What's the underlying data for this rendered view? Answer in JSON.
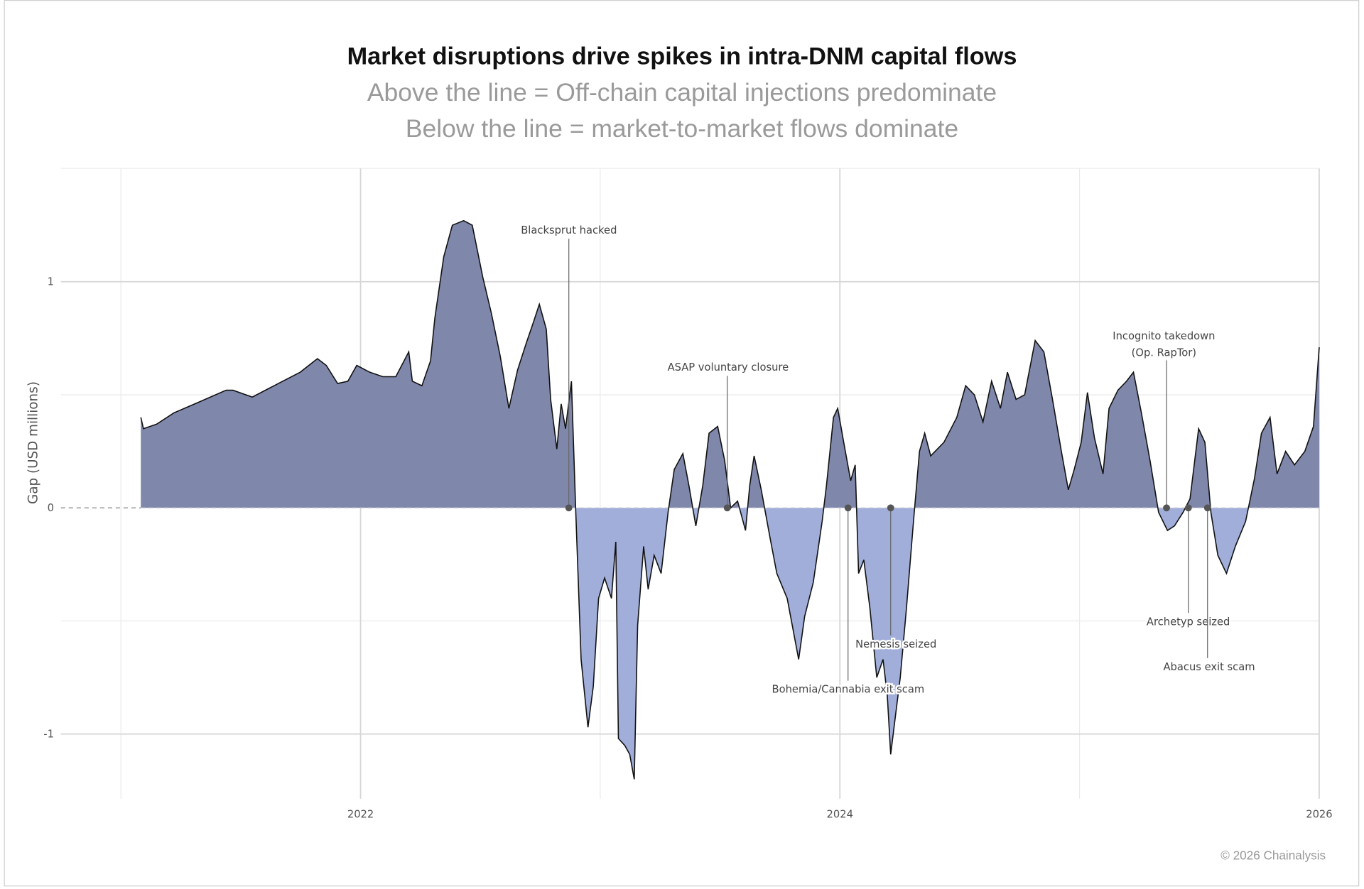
{
  "chart_data": {
    "type": "area",
    "title": "Market disruptions drive spikes in intra-DNM capital flows",
    "subtitle_lines": [
      "Above the line = Off-chain capital injections predominate",
      "Below the line = market-to-market flows dominate"
    ],
    "xlabel": "",
    "ylabel": "Gap (USD millions)",
    "xlim": [
      2020.9,
      2026.05
    ],
    "ylim": [
      -1.3,
      1.5
    ],
    "x_ticks": [
      {
        "value": 2022,
        "label": "2022"
      },
      {
        "value": 2024,
        "label": "2024"
      },
      {
        "value": 2026,
        "label": "2026"
      }
    ],
    "y_ticks": [
      {
        "value": 1,
        "label": "1"
      },
      {
        "value": 0,
        "label": "0"
      },
      {
        "value": -1,
        "label": "-1"
      }
    ],
    "grid": true,
    "colors": {
      "positive": "#7f88ab",
      "negative": "#a1aed9",
      "line": "#111111"
    },
    "series": [
      {
        "name": "Gap",
        "x": [
          2021.083,
          2021.094,
          2021.149,
          2021.221,
          2021.33,
          2021.439,
          2021.468,
          2021.548,
          2021.657,
          2021.748,
          2021.82,
          2021.857,
          2021.904,
          2021.947,
          2021.984,
          2022.038,
          2022.093,
          2022.147,
          2022.201,
          2022.216,
          2022.256,
          2022.292,
          2022.31,
          2022.347,
          2022.383,
          2022.43,
          2022.466,
          2022.51,
          2022.546,
          2022.583,
          2022.619,
          2022.655,
          2022.692,
          2022.721,
          2022.746,
          2022.775,
          2022.793,
          2022.819,
          2022.837,
          2022.855,
          2022.88,
          2022.898,
          2022.92,
          2022.949,
          2022.971,
          2022.993,
          2023.018,
          2023.047,
          2023.065,
          2023.076,
          2023.102,
          2023.123,
          2023.142,
          2023.156,
          2023.181,
          2023.2,
          2023.225,
          2023.254,
          2023.283,
          2023.309,
          2023.345,
          2023.37,
          2023.399,
          2023.428,
          2023.454,
          2023.49,
          2023.519,
          2023.544,
          2023.573,
          2023.606,
          2023.624,
          2023.642,
          2023.672,
          2023.708,
          2023.737,
          2023.78,
          2023.828,
          2023.853,
          2023.889,
          2023.926,
          2023.944,
          2023.973,
          2023.991,
          2024.016,
          2024.045,
          2024.064,
          2024.078,
          2024.1,
          2024.125,
          2024.154,
          2024.18,
          2024.198,
          2024.212,
          2024.234,
          2024.252,
          2024.278,
          2024.307,
          2024.332,
          2024.354,
          2024.379,
          2024.434,
          2024.488,
          2024.525,
          2024.561,
          2024.597,
          2024.633,
          2024.67,
          2024.699,
          2024.735,
          2024.771,
          2024.815,
          2024.851,
          2024.887,
          2024.924,
          2024.953,
          2024.978,
          2025.007,
          2025.033,
          2025.062,
          2025.098,
          2025.123,
          2025.16,
          2025.196,
          2025.225,
          2025.258,
          2025.294,
          2025.33,
          2025.367,
          2025.396,
          2025.432,
          2025.461,
          2025.497,
          2025.523,
          2025.548,
          2025.577,
          2025.613,
          2025.65,
          2025.693,
          2025.73,
          2025.759,
          2025.795,
          2025.824,
          2025.86,
          2025.897,
          2025.94,
          2025.976,
          2026.0
        ],
        "y": [
          0.4,
          0.35,
          0.37,
          0.42,
          0.47,
          0.52,
          0.52,
          0.49,
          0.55,
          0.6,
          0.66,
          0.63,
          0.55,
          0.56,
          0.63,
          0.6,
          0.58,
          0.58,
          0.69,
          0.56,
          0.54,
          0.65,
          0.84,
          1.11,
          1.25,
          1.27,
          1.25,
          1.02,
          0.86,
          0.67,
          0.44,
          0.61,
          0.73,
          0.82,
          0.9,
          0.79,
          0.48,
          0.26,
          0.46,
          0.35,
          0.56,
          -0.02,
          -0.67,
          -0.97,
          -0.79,
          -0.4,
          -0.31,
          -0.4,
          -0.15,
          -1.02,
          -1.05,
          -1.09,
          -1.2,
          -0.52,
          -0.17,
          -0.36,
          -0.21,
          -0.29,
          -0.02,
          0.17,
          0.24,
          0.1,
          -0.08,
          0.1,
          0.33,
          0.36,
          0.21,
          0.0,
          0.03,
          -0.1,
          0.1,
          0.23,
          0.08,
          -0.13,
          -0.29,
          -0.4,
          -0.67,
          -0.48,
          -0.33,
          -0.06,
          0.1,
          0.4,
          0.44,
          0.29,
          0.12,
          0.19,
          -0.29,
          -0.23,
          -0.44,
          -0.75,
          -0.67,
          -0.83,
          -1.09,
          -0.9,
          -0.75,
          -0.44,
          -0.06,
          0.25,
          0.33,
          0.23,
          0.29,
          0.4,
          0.54,
          0.5,
          0.38,
          0.56,
          0.44,
          0.6,
          0.48,
          0.5,
          0.74,
          0.69,
          0.48,
          0.25,
          0.08,
          0.17,
          0.29,
          0.51,
          0.31,
          0.15,
          0.44,
          0.52,
          0.56,
          0.6,
          0.42,
          0.21,
          -0.02,
          -0.1,
          -0.08,
          -0.02,
          0.04,
          0.35,
          0.29,
          -0.02,
          -0.21,
          -0.29,
          -0.17,
          -0.06,
          0.13,
          0.33,
          0.4,
          0.15,
          0.25,
          0.19,
          0.25,
          0.36,
          0.71
        ]
      }
    ],
    "annotations": [
      {
        "x": 2022.869,
        "y": 0,
        "label": [
          "Blacksprut hacked"
        ]
      },
      {
        "x": 2023.53,
        "y": 0,
        "label": [
          "ASAP voluntary closure"
        ]
      },
      {
        "x": 2024.034,
        "y": 0,
        "label": [
          "Bohemia/Cannabia exit scam"
        ]
      },
      {
        "x": 2024.212,
        "y": 0,
        "label": [
          "Nemesis seized"
        ]
      },
      {
        "x": 2025.363,
        "y": 0,
        "label": [
          "Incognito takedown",
          "(Op. RapTor)"
        ]
      },
      {
        "x": 2025.454,
        "y": 0,
        "label": [
          "Archetyp seized"
        ]
      },
      {
        "x": 2025.534,
        "y": 0,
        "label": [
          "Abacus exit scam"
        ]
      }
    ]
  },
  "footer": {
    "copyright": "© 2026 Chainalysis"
  }
}
